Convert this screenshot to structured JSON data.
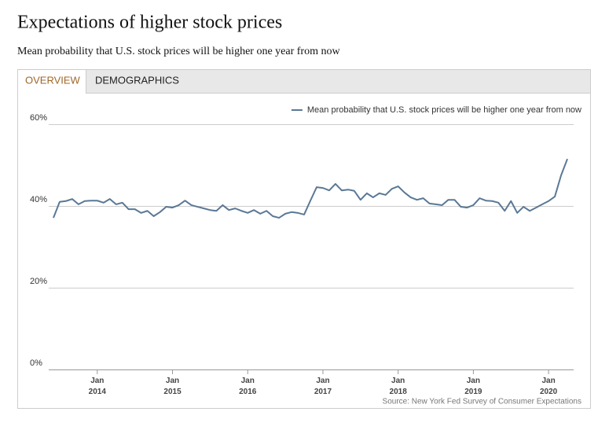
{
  "tabs": [
    "OVERVIEW",
    "DEMOGRAPHICS"
  ],
  "chart_data": {
    "type": "line",
    "title": "Expectations of higher stock prices",
    "subtitle": "Mean probability that U.S. stock prices will be higher one year from now",
    "source": "Source: New York Fed Survey of Consumer Expectations",
    "x": [
      "2013-06",
      "2013-07",
      "2013-08",
      "2013-09",
      "2013-10",
      "2013-11",
      "2013-12",
      "2014-01",
      "2014-02",
      "2014-03",
      "2014-04",
      "2014-05",
      "2014-06",
      "2014-07",
      "2014-08",
      "2014-09",
      "2014-10",
      "2014-11",
      "2014-12",
      "2015-01",
      "2015-02",
      "2015-03",
      "2015-04",
      "2015-05",
      "2015-06",
      "2015-07",
      "2015-08",
      "2015-09",
      "2015-10",
      "2015-11",
      "2015-12",
      "2016-01",
      "2016-02",
      "2016-03",
      "2016-04",
      "2016-05",
      "2016-06",
      "2016-07",
      "2016-08",
      "2016-09",
      "2016-10",
      "2016-11",
      "2016-12",
      "2017-01",
      "2017-02",
      "2017-03",
      "2017-04",
      "2017-05",
      "2017-06",
      "2017-07",
      "2017-08",
      "2017-09",
      "2017-10",
      "2017-11",
      "2017-12",
      "2018-01",
      "2018-02",
      "2018-03",
      "2018-04",
      "2018-05",
      "2018-06",
      "2018-07",
      "2018-08",
      "2018-09",
      "2018-10",
      "2018-11",
      "2018-12",
      "2019-01",
      "2019-02",
      "2019-03",
      "2019-04",
      "2019-05",
      "2019-06",
      "2019-07",
      "2019-08",
      "2019-09",
      "2019-10",
      "2019-11",
      "2019-12",
      "2020-01",
      "2020-02",
      "2020-03",
      "2020-04"
    ],
    "series": [
      {
        "name": "Mean probability that U.S. stock prices will be higher one year from now",
        "color": "#5a7896",
        "values": [
          37.1,
          41.0,
          41.2,
          41.7,
          40.4,
          41.2,
          41.3,
          41.3,
          40.8,
          41.7,
          40.4,
          40.8,
          39.2,
          39.2,
          38.3,
          38.8,
          37.5,
          38.5,
          39.8,
          39.6,
          40.2,
          41.3,
          40.2,
          39.8,
          39.4,
          39.0,
          38.8,
          40.2,
          39.0,
          39.4,
          38.8,
          38.3,
          39.0,
          38.1,
          38.8,
          37.5,
          37.1,
          38.1,
          38.5,
          38.3,
          37.9,
          41.3,
          44.6,
          44.4,
          43.8,
          45.4,
          43.8,
          44.0,
          43.7,
          41.5,
          43.1,
          42.1,
          43.1,
          42.7,
          44.2,
          44.8,
          43.3,
          42.1,
          41.5,
          41.9,
          40.6,
          40.4,
          40.2,
          41.5,
          41.5,
          39.8,
          39.6,
          40.2,
          41.9,
          41.3,
          41.2,
          40.8,
          38.8,
          41.2,
          38.3,
          39.8,
          38.8,
          39.6,
          40.4,
          41.2,
          42.3,
          47.5,
          51.5
        ]
      }
    ],
    "xlim": [
      "2013-05",
      "2020-05"
    ],
    "xticks": [
      {
        "value": "2014-01",
        "label": [
          "Jan",
          "2014"
        ]
      },
      {
        "value": "2015-01",
        "label": [
          "Jan",
          "2015"
        ]
      },
      {
        "value": "2016-01",
        "label": [
          "Jan",
          "2016"
        ]
      },
      {
        "value": "2017-01",
        "label": [
          "Jan",
          "2017"
        ]
      },
      {
        "value": "2018-01",
        "label": [
          "Jan",
          "2018"
        ]
      },
      {
        "value": "2019-01",
        "label": [
          "Jan",
          "2019"
        ]
      },
      {
        "value": "2020-01",
        "label": [
          "Jan",
          "2020"
        ]
      }
    ],
    "ylim": [
      0,
      60
    ],
    "yticks": [
      {
        "value": 0,
        "label": "0%"
      },
      {
        "value": 20,
        "label": "20%"
      },
      {
        "value": 40,
        "label": "40%"
      },
      {
        "value": 60,
        "label": "60%"
      }
    ],
    "grid": true,
    "legend": "top-right"
  }
}
